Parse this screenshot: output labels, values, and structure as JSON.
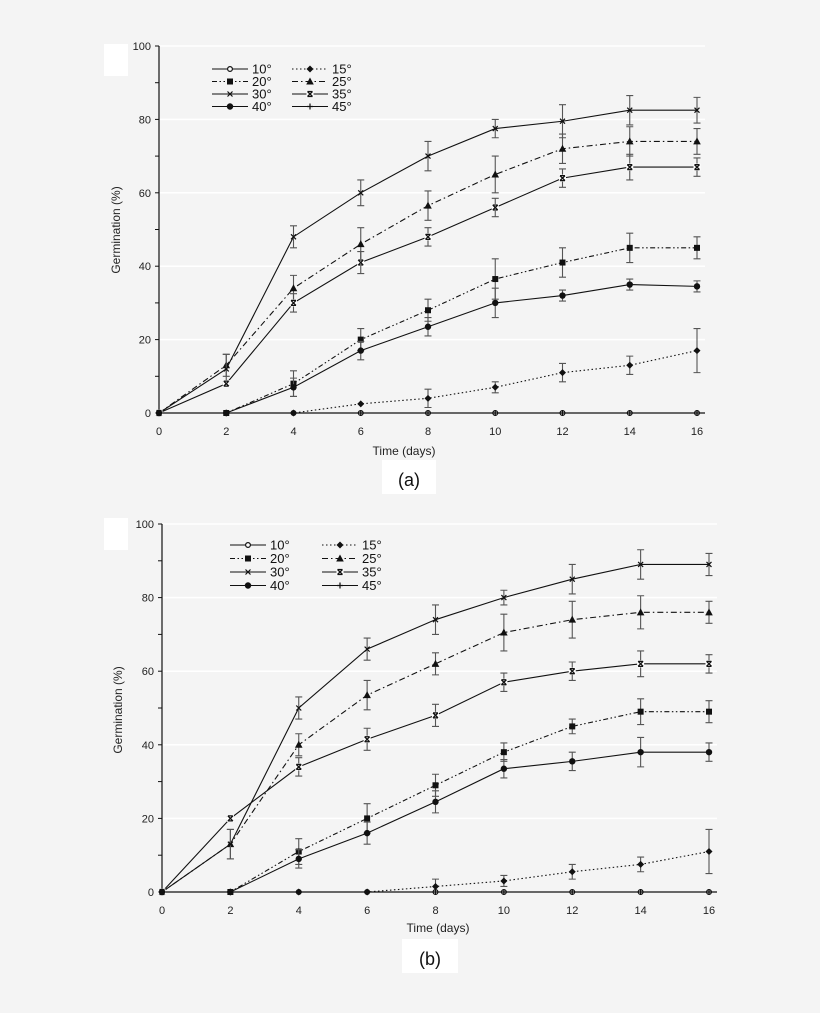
{
  "chart_data": [
    {
      "type": "line",
      "panel_label": "(a)",
      "title": "",
      "xlabel": "Time (days)",
      "ylabel": "Germination (%)",
      "x": [
        0,
        2,
        4,
        6,
        8,
        10,
        12,
        14,
        16
      ],
      "xticks": [
        0,
        2,
        4,
        6,
        8,
        10,
        12,
        14,
        16
      ],
      "yticks": [
        0,
        20,
        40,
        60,
        80,
        100
      ],
      "xlim": [
        0,
        16
      ],
      "ylim": [
        0,
        100
      ],
      "grid": "horizontal",
      "legend_position": "upper-left inside",
      "series": [
        {
          "name": "10°",
          "marker": "open-circle",
          "dash": "solid",
          "values": [
            0,
            0,
            0,
            0,
            0,
            0,
            0,
            0,
            0
          ],
          "errors": [
            0,
            0,
            0,
            0,
            0,
            0,
            0,
            0,
            0
          ]
        },
        {
          "name": "15°",
          "marker": "diamond",
          "dash": "dotted",
          "values": [
            0,
            0,
            0,
            2.5,
            4,
            7,
            11,
            13,
            17
          ],
          "errors": [
            0,
            0,
            0,
            0,
            2.5,
            1.5,
            2.5,
            2.5,
            6
          ]
        },
        {
          "name": "20°",
          "marker": "square",
          "dash": "dashdotdot",
          "values": [
            0,
            0,
            8,
            20,
            28,
            36.5,
            41,
            45,
            45
          ],
          "errors": [
            0,
            0,
            3.5,
            3,
            3,
            5.5,
            4,
            4,
            3
          ]
        },
        {
          "name": "25°",
          "marker": "triangle",
          "dash": "dashdot",
          "values": [
            0,
            13,
            34,
            46,
            56.5,
            65,
            72,
            74,
            74
          ],
          "errors": [
            0,
            3,
            3.5,
            4.5,
            4,
            5,
            4,
            4,
            3.5
          ]
        },
        {
          "name": "30°",
          "marker": "x",
          "dash": "solid",
          "values": [
            0,
            12,
            48,
            60,
            70,
            77.5,
            79.5,
            82.5,
            82.5
          ],
          "errors": [
            0,
            4,
            3,
            3.5,
            4,
            2.5,
            4.5,
            4,
            3.5
          ]
        },
        {
          "name": "35°",
          "marker": "x-bold",
          "dash": "solid",
          "values": [
            0,
            8,
            30,
            41,
            48,
            56,
            64,
            67,
            67
          ],
          "errors": [
            0,
            0.5,
            2.5,
            3,
            2.5,
            2.5,
            2.5,
            3.5,
            2.5
          ]
        },
        {
          "name": "40°",
          "marker": "filled-circle",
          "dash": "solid",
          "values": [
            0,
            0,
            7,
            17,
            23.5,
            30,
            32,
            35,
            34.5
          ],
          "errors": [
            0,
            0,
            2.5,
            2.5,
            2.5,
            4,
            1.5,
            1.5,
            1.5
          ]
        },
        {
          "name": "45°",
          "marker": "plus",
          "dash": "solid",
          "values": [
            0,
            0,
            0,
            0,
            0,
            0,
            0,
            0,
            0
          ],
          "errors": [
            0,
            0,
            0,
            0,
            0,
            0,
            0,
            0,
            0
          ]
        }
      ]
    },
    {
      "type": "line",
      "panel_label": "(b)",
      "title": "",
      "xlabel": "Time (days)",
      "ylabel": "Germination (%)",
      "x": [
        0,
        2,
        4,
        6,
        8,
        10,
        12,
        14,
        16
      ],
      "xticks": [
        0,
        2,
        4,
        6,
        8,
        10,
        12,
        14,
        16
      ],
      "yticks": [
        0,
        20,
        40,
        60,
        80,
        100
      ],
      "xlim": [
        0,
        16
      ],
      "ylim": [
        0,
        100
      ],
      "grid": "horizontal",
      "legend_position": "upper-left inside",
      "series": [
        {
          "name": "10°",
          "marker": "open-circle",
          "dash": "solid",
          "values": [
            0,
            0,
            0,
            0,
            0,
            0,
            0,
            0,
            0
          ],
          "errors": [
            0,
            0,
            0,
            0,
            0,
            0,
            0,
            0,
            0
          ]
        },
        {
          "name": "15°",
          "marker": "diamond",
          "dash": "dotted",
          "values": [
            0,
            0,
            0,
            0,
            1.5,
            3,
            5.5,
            7.5,
            11
          ],
          "errors": [
            0,
            0,
            0,
            0,
            2,
            1.5,
            2,
            2,
            6
          ]
        },
        {
          "name": "20°",
          "marker": "square",
          "dash": "dashdotdot",
          "values": [
            0,
            0,
            11,
            20,
            29,
            38,
            45,
            49,
            49
          ],
          "errors": [
            0,
            0,
            3.5,
            4,
            3,
            2.5,
            2,
            3.5,
            3
          ]
        },
        {
          "name": "25°",
          "marker": "triangle",
          "dash": "dashdot",
          "values": [
            0,
            13,
            40,
            53.5,
            62,
            70.5,
            74,
            76,
            76
          ],
          "errors": [
            0,
            4,
            3,
            4,
            3,
            5,
            5,
            4.5,
            3
          ]
        },
        {
          "name": "30°",
          "marker": "x",
          "dash": "solid",
          "values": [
            0,
            13,
            50,
            66,
            74,
            80,
            85,
            89,
            89
          ],
          "errors": [
            0,
            4,
            3,
            3,
            4,
            2,
            4,
            4,
            3
          ]
        },
        {
          "name": "35°",
          "marker": "x-bold",
          "dash": "solid",
          "values": [
            0,
            20,
            34,
            41.5,
            48,
            57,
            60,
            62,
            62
          ],
          "errors": [
            0,
            0.5,
            2.5,
            3,
            3,
            2.5,
            2.5,
            3.5,
            2.5
          ]
        },
        {
          "name": "40°",
          "marker": "filled-circle",
          "dash": "solid",
          "values": [
            0,
            0,
            9,
            16,
            24.5,
            33.5,
            35.5,
            38,
            38
          ],
          "errors": [
            0,
            0,
            2.5,
            3,
            3,
            2.5,
            2.5,
            4,
            2.5
          ]
        },
        {
          "name": "45°",
          "marker": "plus",
          "dash": "solid",
          "values": [
            0,
            0,
            0,
            0,
            0,
            0,
            0,
            0,
            0
          ],
          "errors": [
            0,
            0,
            0,
            0,
            0,
            0,
            0,
            0,
            0
          ]
        }
      ]
    }
  ]
}
